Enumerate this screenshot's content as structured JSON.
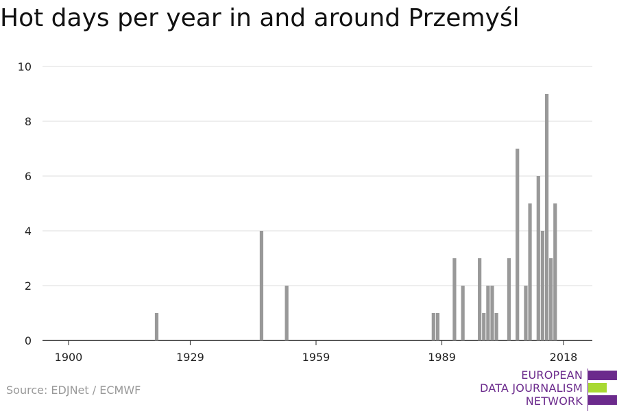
{
  "title": "Hot days per year in and around Przemyśl",
  "source": "Source: EDJNet / ECMWF",
  "logo": {
    "lines": [
      "EUROPEAN",
      "DATA JOURNALISM",
      "NETWORK"
    ],
    "colors": [
      "#6b2a8c",
      "#a8d932",
      "#6b2a8c"
    ]
  },
  "chart_data": {
    "type": "bar",
    "title": "Hot days per year in and around Przemyśl",
    "xlabel": "",
    "ylabel": "",
    "xlim": [
      1900,
      2018
    ],
    "ylim": [
      0,
      10
    ],
    "x_ticks": [
      1900,
      1929,
      1959,
      1989,
      2018
    ],
    "y_ticks": [
      0,
      2,
      4,
      6,
      8,
      10
    ],
    "grid": true,
    "bar_color": "#999999",
    "x": [
      1921,
      1946,
      1952,
      1987,
      1988,
      1992,
      1994,
      1998,
      1999,
      2000,
      2001,
      2002,
      2005,
      2007,
      2009,
      2010,
      2012,
      2013,
      2014,
      2015,
      2016,
      2017
    ],
    "values": [
      1,
      4,
      2,
      1,
      1,
      3,
      2,
      3,
      1,
      2,
      2,
      1,
      3,
      7,
      2,
      5,
      6,
      4,
      9,
      3,
      5,
      0
    ]
  }
}
